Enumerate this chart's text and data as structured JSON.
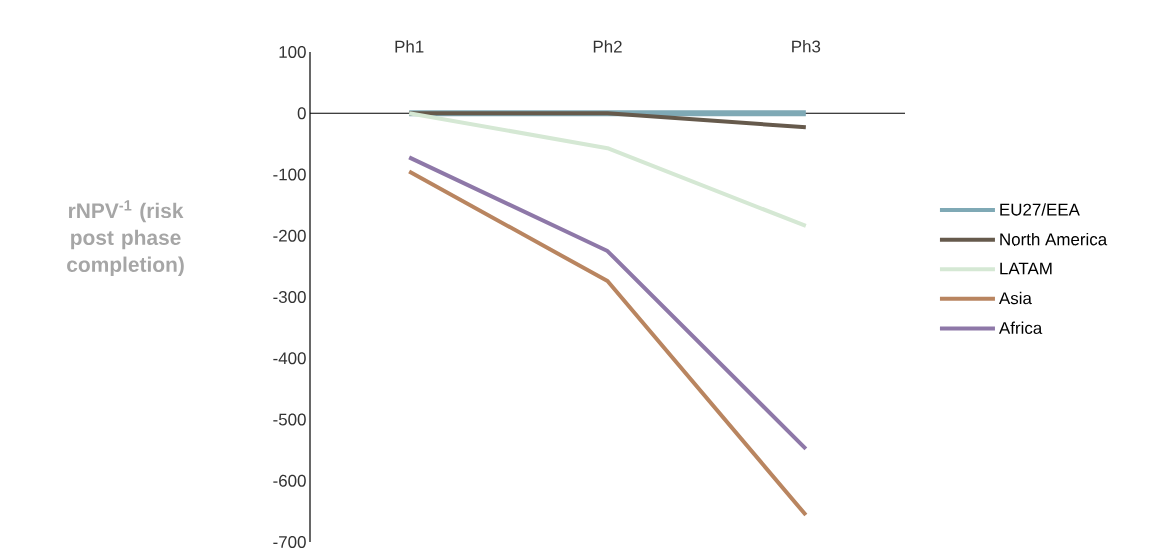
{
  "chart_data": {
    "type": "line",
    "ylabel": "rNPV$^{-1}$ (risk post phase completion)",
    "categories": [
      "Ph1",
      "Ph2",
      "Ph3"
    ],
    "series": [
      {
        "name": "EU27/EEA",
        "color": "#7fa9b5",
        "values": [
          0,
          0,
          0
        ]
      },
      {
        "name": "North America",
        "color": "#665a4c",
        "values": [
          0,
          0,
          -23
        ]
      },
      {
        "name": "LATAM",
        "color": "#d5e8d4",
        "values": [
          0,
          -57,
          -184
        ]
      },
      {
        "name": "Asia",
        "color": "#b98560",
        "values": [
          -95,
          -274,
          -656
        ]
      },
      {
        "name": "Africa",
        "color": "#8e78a8",
        "values": [
          -72,
          -225,
          -548
        ]
      }
    ],
    "ylim": [
      -700,
      100
    ],
    "yticks": [
      -700,
      -600,
      -500,
      -400,
      -300,
      -200,
      -100,
      0,
      100
    ],
    "legend": "right",
    "marker": "none",
    "line_style": "solid"
  }
}
